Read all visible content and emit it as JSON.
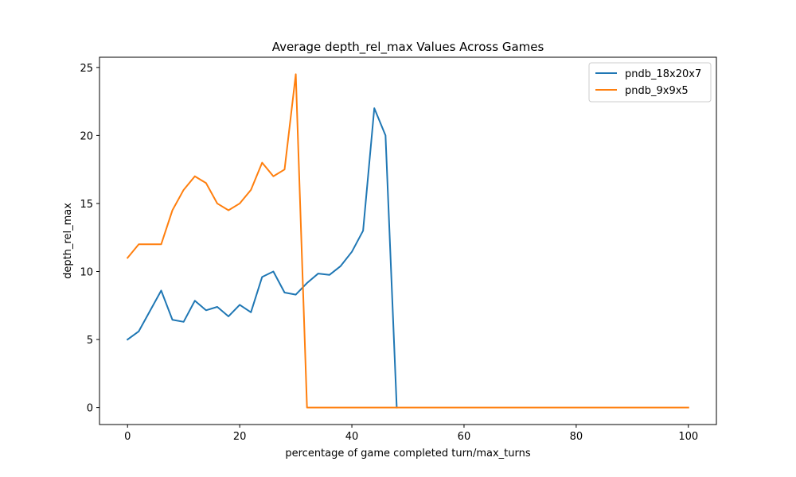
{
  "chart_data": {
    "type": "line",
    "title": "Average depth_rel_max Values Across Games",
    "xlabel": "percentage of game completed turn/max_turns",
    "ylabel": "depth_rel_max",
    "xlim": [
      -5,
      105
    ],
    "ylim": [
      -1.25,
      25.75
    ],
    "xticks": [
      0,
      20,
      40,
      60,
      80,
      100
    ],
    "yticks": [
      0,
      5,
      10,
      15,
      20,
      25
    ],
    "grid": false,
    "legend_position": "top-right",
    "series": [
      {
        "name": "pndb_18x20x7",
        "color": "#1f77b4",
        "x": [
          0,
          2,
          4,
          6,
          8,
          10,
          12,
          14,
          16,
          18,
          20,
          22,
          24,
          26,
          28,
          30,
          32,
          34,
          36,
          38,
          40,
          42,
          44,
          46,
          48
        ],
        "y": [
          5.0,
          5.6,
          7.1,
          8.6,
          6.45,
          6.3,
          7.85,
          7.15,
          7.4,
          6.7,
          7.55,
          7.0,
          9.6,
          10.0,
          8.45,
          8.3,
          9.15,
          9.85,
          9.75,
          10.4,
          11.45,
          13.0,
          22.0,
          20.0,
          0.0
        ]
      },
      {
        "name": "pndb_9x9x5",
        "color": "#ff7f0e",
        "x": [
          0,
          2,
          4,
          6,
          8,
          10,
          12,
          14,
          16,
          18,
          20,
          22,
          24,
          26,
          28,
          30,
          32,
          100
        ],
        "y": [
          11.0,
          12.0,
          12.0,
          12.0,
          14.5,
          16.0,
          17.0,
          16.5,
          15.0,
          14.5,
          15.0,
          16.0,
          18.0,
          17.0,
          17.5,
          24.5,
          0.0,
          0.0
        ]
      }
    ]
  }
}
